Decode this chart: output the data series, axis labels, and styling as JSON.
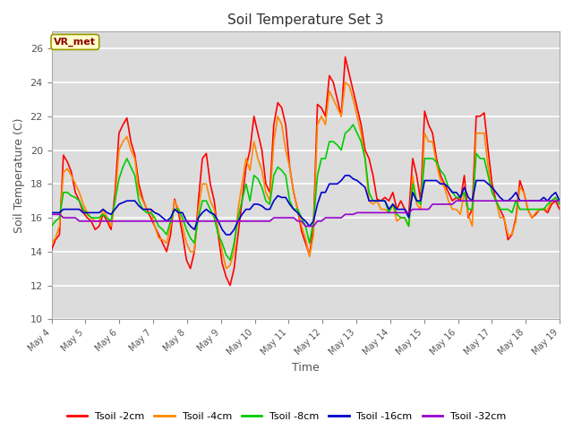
{
  "title": "Soil Temperature Set 3",
  "xlabel": "Time",
  "ylabel": "Soil Temperature (C)",
  "ylim": [
    10,
    27
  ],
  "yticks": [
    10,
    12,
    14,
    16,
    18,
    20,
    22,
    24,
    26
  ],
  "plot_bg_color": "#dcdcdc",
  "fig_bg_color": "#ffffff",
  "label_box_text": "VR_met",
  "label_box_facecolor": "#ffffcc",
  "label_box_edgecolor": "#999900",
  "label_box_textcolor": "#8b0000",
  "series_names": [
    "Tsoil -2cm",
    "Tsoil -4cm",
    "Tsoil -8cm",
    "Tsoil -16cm",
    "Tsoil -32cm"
  ],
  "series_colors": [
    "#ff0000",
    "#ff8800",
    "#00cc00",
    "#0000cc",
    "#9900cc"
  ],
  "series_lw": [
    1.2,
    1.2,
    1.2,
    1.2,
    1.2
  ],
  "xtick_labels": [
    "May 4",
    "May 5",
    "May 6",
    "May 7",
    "May 8",
    "May 9",
    "May 10",
    "May 11",
    "May 12",
    "May 13",
    "May 14",
    "May 15",
    "May 16",
    "May 17",
    "May 18",
    "May 19"
  ],
  "data_2cm": [
    14.1,
    14.7,
    15.0,
    19.7,
    19.3,
    18.7,
    17.5,
    17.0,
    16.3,
    16.0,
    15.8,
    15.3,
    15.5,
    16.2,
    15.8,
    15.3,
    17.5,
    21.0,
    21.5,
    21.9,
    20.5,
    19.7,
    18.0,
    17.1,
    16.5,
    16.0,
    15.5,
    15.0,
    14.5,
    14.0,
    15.0,
    17.1,
    16.3,
    15.0,
    13.5,
    13.0,
    14.0,
    17.0,
    19.5,
    19.8,
    18.0,
    17.0,
    15.0,
    13.3,
    12.5,
    12.0,
    13.0,
    15.0,
    17.0,
    19.0,
    20.0,
    22.0,
    21.0,
    20.0,
    18.0,
    17.5,
    21.5,
    22.8,
    22.5,
    21.5,
    19.0,
    17.5,
    16.5,
    15.2,
    14.5,
    13.8,
    15.5,
    22.7,
    22.5,
    22.0,
    24.4,
    24.0,
    23.0,
    22.0,
    25.5,
    24.5,
    23.5,
    22.5,
    21.5,
    20.0,
    19.5,
    18.5,
    17.1,
    17.0,
    17.2,
    17.0,
    17.5,
    16.5,
    17.0,
    16.5,
    16.2,
    19.5,
    18.5,
    17.0,
    22.3,
    21.5,
    21.0,
    19.5,
    18.5,
    18.0,
    17.5,
    17.0,
    17.2,
    17.0,
    18.5,
    16.0,
    16.5,
    22.0,
    22.0,
    22.2,
    20.0,
    18.0,
    17.0,
    16.5,
    16.0,
    14.7,
    15.0,
    16.0,
    18.2,
    17.5,
    16.5,
    16.0,
    16.2,
    16.5,
    16.5,
    16.3,
    16.8,
    17.0,
    16.5
  ],
  "data_4cm": [
    14.5,
    14.8,
    15.5,
    18.7,
    18.9,
    18.5,
    18.0,
    17.5,
    16.8,
    16.3,
    16.0,
    15.8,
    15.8,
    16.5,
    16.0,
    15.5,
    17.0,
    20.0,
    20.5,
    20.8,
    20.0,
    19.5,
    17.5,
    17.0,
    16.5,
    16.5,
    15.5,
    14.8,
    14.7,
    14.5,
    15.5,
    17.0,
    16.5,
    15.5,
    14.5,
    14.0,
    14.0,
    16.5,
    18.0,
    18.0,
    17.0,
    16.5,
    15.3,
    14.0,
    13.0,
    13.2,
    14.0,
    16.5,
    18.0,
    19.5,
    18.8,
    20.5,
    19.5,
    18.8,
    17.5,
    17.0,
    20.5,
    22.0,
    21.5,
    20.0,
    19.0,
    17.5,
    16.5,
    15.5,
    14.8,
    13.7,
    15.0,
    21.5,
    22.0,
    21.5,
    23.5,
    23.0,
    22.5,
    22.0,
    24.0,
    23.8,
    23.0,
    22.0,
    21.0,
    19.5,
    17.0,
    16.8,
    17.0,
    16.5,
    16.5,
    16.3,
    16.8,
    15.8,
    16.0,
    16.0,
    15.5,
    18.5,
    16.8,
    16.5,
    21.0,
    20.5,
    20.5,
    19.2,
    18.2,
    17.8,
    17.0,
    16.5,
    16.5,
    16.2,
    17.5,
    16.2,
    15.5,
    21.0,
    21.0,
    21.0,
    19.0,
    17.5,
    17.0,
    16.0,
    16.0,
    15.0,
    15.0,
    15.8,
    17.8,
    17.5,
    16.5,
    16.0,
    16.3,
    16.5,
    16.5,
    16.5,
    17.0,
    17.2,
    16.8
  ],
  "data_8cm": [
    15.5,
    15.8,
    16.0,
    17.5,
    17.5,
    17.3,
    17.2,
    17.0,
    16.5,
    16.2,
    16.0,
    16.0,
    16.0,
    16.2,
    16.0,
    15.8,
    17.0,
    18.3,
    19.0,
    19.5,
    19.0,
    18.5,
    17.0,
    16.5,
    16.3,
    16.3,
    16.0,
    15.5,
    15.3,
    15.0,
    15.8,
    16.5,
    16.5,
    16.0,
    15.3,
    14.8,
    14.5,
    16.0,
    17.0,
    17.0,
    16.5,
    16.0,
    15.0,
    14.5,
    13.8,
    13.5,
    14.5,
    16.0,
    17.0,
    18.0,
    17.0,
    18.5,
    18.3,
    17.8,
    17.0,
    16.8,
    18.5,
    19.0,
    18.8,
    18.5,
    17.0,
    16.5,
    16.5,
    16.0,
    15.5,
    14.5,
    15.8,
    18.5,
    19.5,
    19.5,
    20.5,
    20.5,
    20.3,
    20.0,
    21.0,
    21.2,
    21.5,
    21.0,
    20.5,
    19.5,
    17.5,
    17.0,
    17.0,
    17.0,
    17.0,
    16.3,
    16.8,
    16.2,
    16.0,
    16.0,
    15.5,
    18.0,
    17.0,
    16.8,
    19.5,
    19.5,
    19.5,
    19.3,
    18.8,
    18.5,
    17.8,
    17.5,
    17.2,
    17.2,
    17.5,
    16.5,
    16.5,
    19.8,
    19.5,
    19.5,
    18.5,
    17.5,
    17.0,
    16.5,
    16.5,
    16.5,
    16.3,
    17.0,
    16.5,
    16.5,
    16.5,
    16.5,
    16.5,
    16.5,
    16.5,
    16.8,
    17.0,
    17.2,
    16.8
  ],
  "data_16cm": [
    16.3,
    16.3,
    16.3,
    16.5,
    16.5,
    16.5,
    16.5,
    16.5,
    16.3,
    16.3,
    16.3,
    16.3,
    16.3,
    16.5,
    16.3,
    16.2,
    16.5,
    16.8,
    16.9,
    17.0,
    17.0,
    17.0,
    16.7,
    16.5,
    16.5,
    16.5,
    16.3,
    16.2,
    16.0,
    15.8,
    16.0,
    16.5,
    16.3,
    16.3,
    15.8,
    15.5,
    15.3,
    16.0,
    16.3,
    16.5,
    16.3,
    16.2,
    15.8,
    15.3,
    15.0,
    15.0,
    15.3,
    15.8,
    16.2,
    16.5,
    16.5,
    16.8,
    16.8,
    16.7,
    16.5,
    16.5,
    17.0,
    17.3,
    17.2,
    17.2,
    16.8,
    16.5,
    16.3,
    16.0,
    15.8,
    15.5,
    15.8,
    16.8,
    17.5,
    17.5,
    18.0,
    18.0,
    18.0,
    18.2,
    18.5,
    18.5,
    18.3,
    18.2,
    18.0,
    17.8,
    17.0,
    17.0,
    17.0,
    17.0,
    17.0,
    16.5,
    16.8,
    16.5,
    16.5,
    16.5,
    16.0,
    17.5,
    17.0,
    17.0,
    18.2,
    18.2,
    18.2,
    18.2,
    18.0,
    18.0,
    17.8,
    17.5,
    17.5,
    17.2,
    17.8,
    17.2,
    17.0,
    18.2,
    18.2,
    18.2,
    18.0,
    17.8,
    17.5,
    17.2,
    17.0,
    17.0,
    17.2,
    17.5,
    17.0,
    17.0,
    17.0,
    17.0,
    17.0,
    17.0,
    17.2,
    17.0,
    17.3,
    17.5,
    17.0
  ],
  "data_32cm": [
    16.2,
    16.2,
    16.2,
    16.0,
    16.0,
    16.0,
    16.0,
    15.8,
    15.8,
    15.8,
    15.8,
    15.8,
    15.8,
    15.8,
    15.8,
    15.8,
    15.8,
    15.8,
    15.8,
    15.8,
    15.8,
    15.8,
    15.8,
    15.8,
    15.8,
    15.8,
    15.8,
    15.8,
    15.8,
    15.8,
    15.8,
    15.8,
    15.8,
    15.8,
    15.8,
    15.8,
    15.8,
    15.8,
    15.8,
    15.8,
    15.8,
    15.8,
    15.8,
    15.8,
    15.8,
    15.8,
    15.8,
    15.8,
    15.8,
    15.8,
    15.8,
    15.8,
    15.8,
    15.8,
    15.8,
    15.8,
    16.0,
    16.0,
    16.0,
    16.0,
    16.0,
    16.0,
    15.8,
    15.8,
    15.5,
    15.5,
    15.5,
    15.8,
    15.8,
    16.0,
    16.0,
    16.0,
    16.0,
    16.0,
    16.2,
    16.2,
    16.2,
    16.3,
    16.3,
    16.3,
    16.3,
    16.3,
    16.3,
    16.3,
    16.3,
    16.3,
    16.3,
    16.3,
    16.3,
    16.3,
    16.3,
    16.5,
    16.5,
    16.5,
    16.5,
    16.5,
    16.8,
    16.8,
    16.8,
    16.8,
    16.8,
    16.8,
    17.0,
    17.0,
    17.0,
    17.0,
    17.0,
    17.0,
    17.0,
    17.0,
    17.0,
    17.0,
    17.0,
    17.0,
    17.0,
    17.0,
    17.0,
    17.0,
    17.0,
    17.0,
    17.0,
    17.0,
    17.0,
    17.0,
    17.0,
    17.0,
    17.0,
    17.0,
    17.0
  ]
}
